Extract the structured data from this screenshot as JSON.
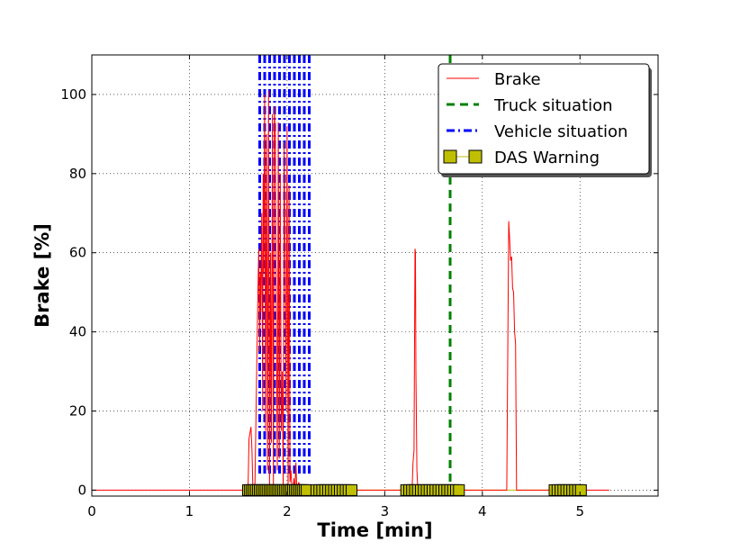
{
  "chart_data": {
    "type": "line",
    "xlabel": "Time [min]",
    "ylabel": "Brake [%]",
    "xlim": [
      0,
      5.8
    ],
    "ylim": [
      -1.5,
      110
    ],
    "xticks": [
      0,
      1,
      2,
      3,
      4,
      5
    ],
    "xtick_labels": [
      "0",
      "1",
      "2",
      "3",
      "4",
      "5"
    ],
    "yticks": [
      0,
      20,
      40,
      60,
      80,
      100
    ],
    "ytick_labels": [
      "0",
      "20",
      "40",
      "60",
      "80",
      "100"
    ],
    "grid": true,
    "legend_position": "top-right",
    "series": [
      {
        "name": "Brake",
        "kind": "line",
        "color": "#ff0000",
        "x": [
          0,
          1.6,
          1.61,
          1.63,
          1.64,
          1.65,
          1.66,
          1.67,
          1.7,
          1.71,
          1.72,
          1.725,
          1.73,
          1.74,
          1.75,
          1.755,
          1.76,
          1.77,
          1.78,
          1.79,
          1.8,
          1.81,
          1.82,
          1.83,
          1.84,
          1.85,
          1.86,
          1.87,
          1.88,
          1.89,
          1.9,
          1.91,
          1.92,
          1.93,
          1.94,
          1.95,
          1.96,
          1.97,
          1.98,
          1.99,
          2.0,
          2.01,
          2.02,
          2.03,
          2.04,
          2.05,
          2.06,
          2.07,
          2.08,
          2.09,
          2.1,
          2.12,
          2.14,
          2.16,
          2.17,
          2.18,
          2.2,
          3.28,
          3.29,
          3.3,
          3.31,
          3.315,
          3.32,
          3.33,
          3.34,
          3.35,
          3.36,
          3.4,
          4.25,
          4.27,
          4.28,
          4.29,
          4.3,
          4.31,
          4.32,
          4.33,
          4.34,
          4.35,
          4.36,
          5.3
        ],
        "y": [
          0,
          0,
          13,
          16,
          10,
          0,
          0,
          0,
          49,
          61,
          35,
          55,
          45,
          70,
          20,
          80,
          55,
          100,
          15,
          90,
          5,
          101,
          0,
          60,
          12,
          95,
          0,
          97,
          88,
          40,
          5,
          93,
          8,
          80,
          15,
          30,
          0,
          88,
          60,
          20,
          92,
          0,
          77,
          2,
          5,
          0,
          0,
          3,
          0,
          7,
          0,
          2,
          0,
          0,
          0,
          0,
          0,
          0,
          7,
          10,
          61,
          60,
          30,
          5,
          0,
          0,
          0,
          0,
          0,
          68,
          63,
          58,
          59,
          51,
          50,
          40,
          37,
          0,
          0,
          0
        ]
      },
      {
        "name": "Truck situation",
        "kind": "vline",
        "color": "#008000",
        "x": 3.67
      },
      {
        "name": "Vehicle situation",
        "kind": "vband",
        "color": "#0000ff",
        "x_start": 1.72,
        "x_end": 2.23
      },
      {
        "name": "DAS Warning",
        "kind": "markers",
        "color": "#bfbf00",
        "line_color": "#bfbf00",
        "baseline": 0,
        "groups": [
          [
            1.6,
            1.62,
            1.64,
            1.66,
            1.68,
            1.7,
            1.72,
            1.74,
            1.76,
            1.78,
            1.8,
            1.82,
            1.84,
            1.86,
            1.88,
            1.9,
            1.92,
            1.94,
            1.96,
            1.98,
            2.0,
            2.02,
            2.04,
            2.06,
            2.08,
            2.1,
            2.12,
            2.14,
            2.16,
            2.18,
            2.2
          ],
          [
            2.3,
            2.33,
            2.36,
            2.39,
            2.42,
            2.45,
            2.48,
            2.51,
            2.54,
            2.57,
            2.6,
            2.63,
            2.66
          ],
          [
            3.22,
            3.25,
            3.28,
            3.31,
            3.34,
            3.37,
            3.4,
            3.43,
            3.46,
            3.49,
            3.52,
            3.55,
            3.58,
            3.61,
            3.64,
            3.67,
            3.7,
            3.73,
            3.76
          ],
          [
            4.74,
            4.77,
            4.8,
            4.83,
            4.86,
            4.89,
            4.92,
            4.95,
            4.98,
            5.01
          ]
        ]
      }
    ]
  }
}
